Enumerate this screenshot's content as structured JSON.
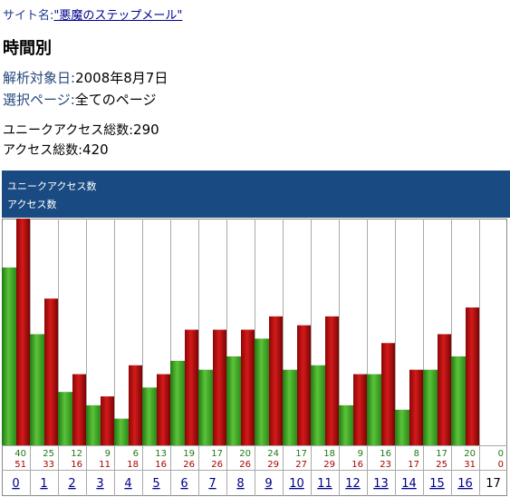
{
  "header": {
    "site_label": "サイト名:",
    "site_name": "\"悪魔のステップメール\"",
    "title": "時間別",
    "date_label": "解析対象日:",
    "date_value": "2008年8月7日",
    "page_label": "選択ページ:",
    "page_value": "全てのページ",
    "unique_label": "ユニークアクセス総数:",
    "unique_value": "290",
    "access_label": "アクセス総数:",
    "access_value": "420"
  },
  "legend": {
    "unique": "ユニークアクセス数",
    "access": "アクセス数"
  },
  "colors": {
    "unique": "#2e9e1a",
    "access": "#b50c0c",
    "legend_bg": "#1a4a82",
    "link": "#00008b"
  },
  "chart_data": {
    "type": "bar",
    "categories": [
      "0",
      "1",
      "2",
      "3",
      "4",
      "5",
      "6",
      "7",
      "8",
      "9",
      "10",
      "11",
      "12",
      "13",
      "14",
      "15",
      "16",
      "17"
    ],
    "series": [
      {
        "name": "ユニークアクセス数",
        "values": [
          40,
          25,
          12,
          9,
          6,
          13,
          19,
          17,
          20,
          24,
          17,
          18,
          9,
          16,
          8,
          17,
          20,
          0
        ]
      },
      {
        "name": "アクセス数",
        "values": [
          51,
          33,
          16,
          11,
          18,
          16,
          26,
          26,
          26,
          29,
          27,
          29,
          16,
          23,
          17,
          25,
          31,
          0
        ]
      }
    ],
    "linked_categories": [
      "0",
      "1",
      "2",
      "3",
      "4",
      "5",
      "6",
      "7",
      "8",
      "9",
      "10",
      "11",
      "12",
      "13",
      "14",
      "15",
      "16"
    ],
    "ylim": [
      0,
      51
    ]
  }
}
